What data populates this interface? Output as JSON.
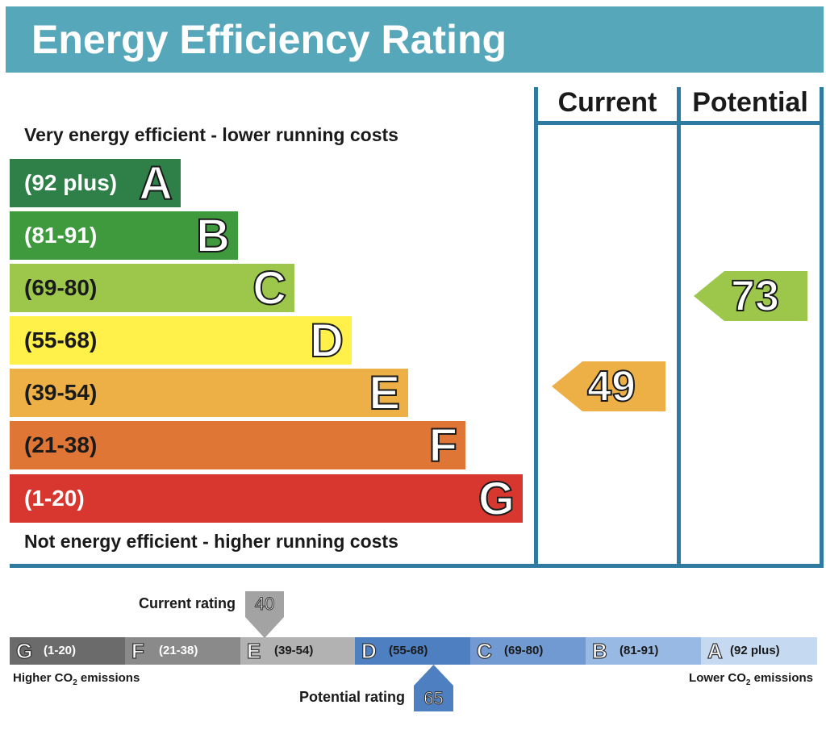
{
  "title": "Energy Efficiency Rating",
  "columns": {
    "current": "Current",
    "potential": "Potential"
  },
  "top_text": "Very energy efficient - lower running costs",
  "bottom_text": "Not energy efficient - higher running costs",
  "bands": [
    {
      "range": "(92 plus)",
      "letter": "A",
      "color": "#2e7f48",
      "range_color": "#ffffff"
    },
    {
      "range": "(81-91)",
      "letter": "B",
      "color": "#3f9a3d",
      "range_color": "#ffffff"
    },
    {
      "range": "(69-80)",
      "letter": "C",
      "color": "#9cc74b",
      "range_color": "#1a1a1a"
    },
    {
      "range": "(55-68)",
      "letter": "D",
      "color": "#fff04a",
      "range_color": "#1a1a1a"
    },
    {
      "range": "(39-54)",
      "letter": "E",
      "color": "#ecb047",
      "range_color": "#1a1a1a"
    },
    {
      "range": "(21-38)",
      "letter": "F",
      "color": "#e07636",
      "range_color": "#1a1a1a"
    },
    {
      "range": "(1-20)",
      "letter": "G",
      "color": "#d8372f",
      "range_color": "#ffffff"
    }
  ],
  "current_value": "49",
  "potential_value": "73",
  "current_color": "#ecb047",
  "potential_color": "#9cc74b",
  "co2": {
    "scale": [
      {
        "letter": "G",
        "range": "(1-20)",
        "color": "#6b6b6b"
      },
      {
        "letter": "F",
        "range": "(21-38)",
        "color": "#8a8a8a"
      },
      {
        "letter": "E",
        "range": "(39-54)",
        "color": "#b2b2b2"
      },
      {
        "letter": "D",
        "range": "(55-68)",
        "color": "#4e7fc1"
      },
      {
        "letter": "C",
        "range": "(69-80)",
        "color": "#7199d2"
      },
      {
        "letter": "B",
        "range": "(81-91)",
        "color": "#98b9e4"
      },
      {
        "letter": "A",
        "range": "(92 plus)",
        "color": "#c5d9f1"
      }
    ],
    "current_label": "Current rating",
    "current_value": "40",
    "potential_label": "Potential rating",
    "potential_value": "65",
    "higher_label": "Higher CO",
    "lower_label": "Lower CO",
    "subscript": "2",
    "emissions_word": " emissions"
  }
}
